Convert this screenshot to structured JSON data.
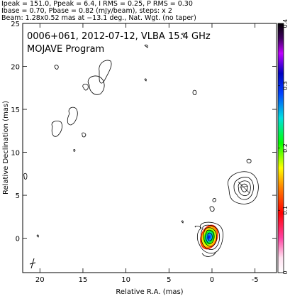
{
  "header": {
    "line1": "Ipeak = 151.0, Ppeak = 6.4, I RMS = 0.25, P RMS = 0.30",
    "line2": "Ibase = 0.70, Pbase = 0.82 (mJy/beam), steps: x 2",
    "line3": "Beam: 1.28x0.52 mas at −13.1 deg., Nat. Wgt. (no taper)"
  },
  "annotation": {
    "line1": "0006+061, 2012-07-12, VLBA 15.4 GHz",
    "line2": "MOJAVE Program"
  },
  "chart_data": {
    "type": "contour",
    "xlabel": "Relative R.A. (mas)",
    "ylabel": "Relative Declination (mas)",
    "xlim": [
      22,
      -7.5
    ],
    "ylim": [
      -4,
      25
    ],
    "xticks": [
      20,
      15,
      10,
      5,
      0,
      -5
    ],
    "yticks": [
      0,
      5,
      10,
      15,
      20,
      25
    ],
    "colorbar": {
      "range": [
        0,
        0.4
      ],
      "ticks": [
        0,
        0.1,
        0.2,
        0.3,
        0.4
      ]
    },
    "peak_intensity_mJy": 151.0,
    "polarized_peak_mJy": 6.4,
    "i_rms": 0.25,
    "p_rms": 0.3,
    "i_base": 0.7,
    "p_base": 0.82,
    "contour_step": 2,
    "beam": {
      "major_mas": 1.28,
      "minor_mas": 0.52,
      "pa_deg": -13.1
    }
  }
}
